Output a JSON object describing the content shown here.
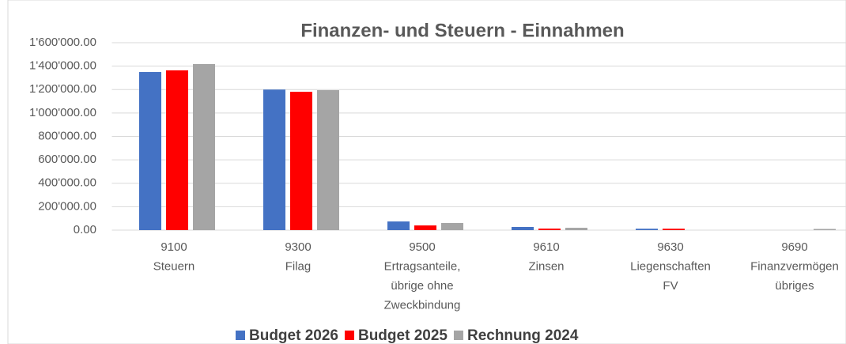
{
  "chart_data": {
    "type": "bar",
    "title": "Finanzen- und Steuern - Einnahmen",
    "categories": [
      "9100\nSteuern",
      "9300\nFilag",
      "9500\nErtragsanteile,\nübrige ohne\nZweckbindung",
      "9610\nZinsen",
      "9630\nLiegenschaften\nFV",
      "9690\nFinanzvermögen\nübriges"
    ],
    "series": [
      {
        "name": "Budget 2026",
        "color": "#4472c4",
        "values": [
          1350000,
          1200000,
          74000,
          27000,
          12000,
          0
        ]
      },
      {
        "name": "Budget 2025",
        "color": "#ff0000",
        "values": [
          1364000,
          1181000,
          40000,
          13000,
          12000,
          0
        ]
      },
      {
        "name": "Rechnung 2024",
        "color": "#a5a5a5",
        "values": [
          1418000,
          1195000,
          61000,
          20000,
          0,
          10000
        ]
      }
    ],
    "ylim": [
      0,
      1600000
    ],
    "yticks": [
      {
        "value": 0,
        "label": "0.00"
      },
      {
        "value": 200000,
        "label": "200'000.00"
      },
      {
        "value": 400000,
        "label": "400'000.00"
      },
      {
        "value": 600000,
        "label": "600'000.00"
      },
      {
        "value": 800000,
        "label": "800'000.00"
      },
      {
        "value": 1000000,
        "label": "1'000'000.00"
      },
      {
        "value": 1200000,
        "label": "1'200'000.00"
      },
      {
        "value": 1400000,
        "label": "1'400'000.00"
      },
      {
        "value": 1600000,
        "label": "1'600'000.00"
      }
    ],
    "grid": true,
    "legend": "bottom"
  }
}
